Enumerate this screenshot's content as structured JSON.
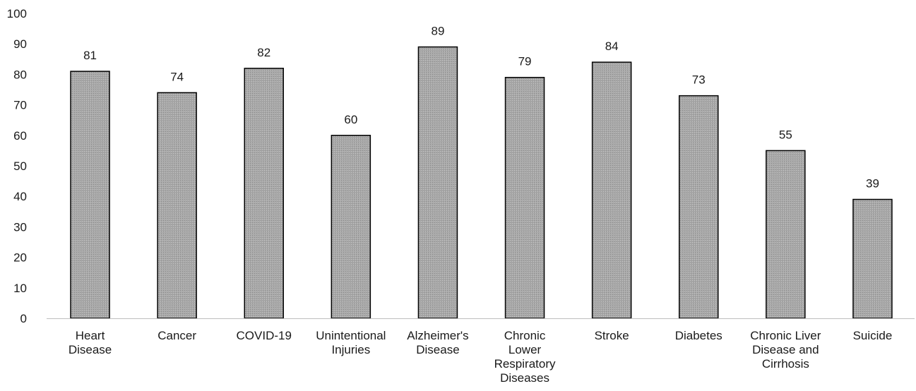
{
  "chart_data": {
    "type": "bar",
    "title": "",
    "xlabel": "",
    "ylabel": "",
    "ylim": [
      0,
      100
    ],
    "yticks": [
      0,
      10,
      20,
      30,
      40,
      50,
      60,
      70,
      80,
      90,
      100
    ],
    "grid": false,
    "legend": "none",
    "categories": [
      [
        "Heart",
        "Disease"
      ],
      [
        "Cancer"
      ],
      [
        "COVID-19"
      ],
      [
        "Unintentional",
        "Injuries"
      ],
      [
        "Alzheimer's",
        "Disease"
      ],
      [
        "Chronic",
        "Lower",
        "Respiratory",
        "Diseases"
      ],
      [
        "Stroke"
      ],
      [
        "Diabetes"
      ],
      [
        "Chronic Liver",
        "Disease and",
        "Cirrhosis"
      ],
      [
        "Suicide"
      ]
    ],
    "values": [
      81,
      74,
      82,
      60,
      89,
      79,
      84,
      73,
      55,
      39
    ],
    "colors": {
      "bar_fill": "#a6a6a6",
      "bar_stroke": "#000000",
      "axis": "#bfbfbf",
      "text": "#1a1a1a"
    }
  }
}
